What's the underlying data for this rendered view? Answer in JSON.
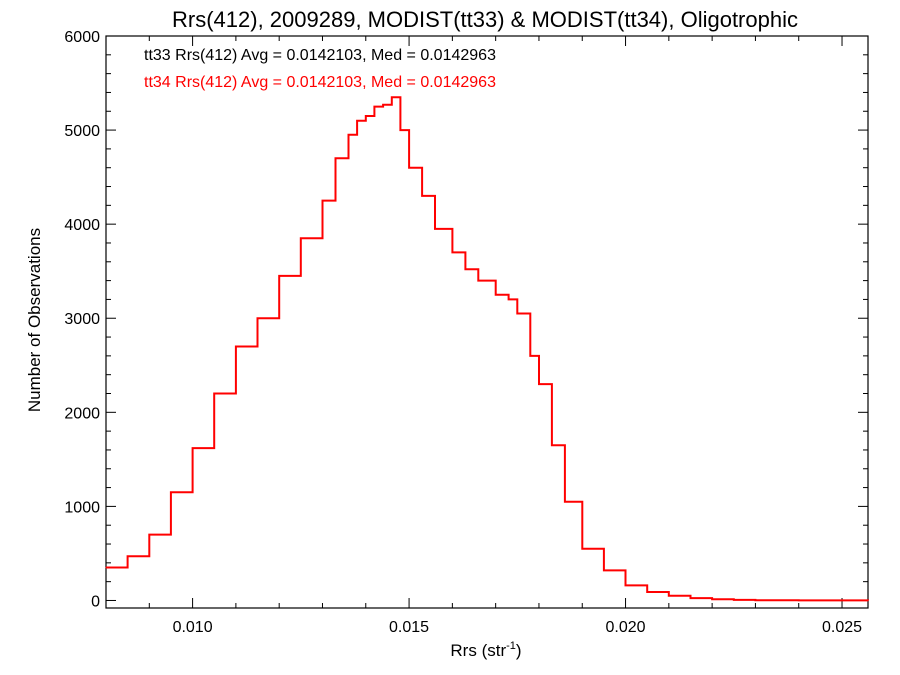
{
  "chart_data": {
    "type": "line",
    "step": true,
    "title": "Rrs(412), 2009289, MODIST(tt33) & MODIST(tt34), Oligotrophic",
    "xlabel": "Rrs (str",
    "xlabel_sup": "-1",
    "xlabel_end": ")",
    "ylabel": "Number of Observations",
    "xlim": [
      0.008,
      0.0256
    ],
    "ylim": [
      -80,
      6000
    ],
    "xticks": [
      0.01,
      0.015,
      0.02,
      0.025
    ],
    "xtick_labels": [
      "0.010",
      "0.015",
      "0.020",
      "0.025"
    ],
    "yticks": [
      0,
      1000,
      2000,
      3000,
      4000,
      5000,
      6000
    ],
    "ytick_labels": [
      "0",
      "1000",
      "2000",
      "3000",
      "4000",
      "5000",
      "6000"
    ],
    "grid": false,
    "annotations": [
      {
        "text": "tt33 Rrs(412) Avg = 0.0142103, Med = 0.0142963",
        "color": "#000000"
      },
      {
        "text": "tt34 Rrs(412) Avg = 0.0142103, Med = 0.0142963",
        "color": "#ff0000"
      }
    ],
    "series": [
      {
        "color": "#ff0000",
        "x": [
          0.008,
          0.0085,
          0.009,
          0.0095,
          0.01,
          0.0105,
          0.011,
          0.0115,
          0.012,
          0.0125,
          0.013,
          0.0133,
          0.0136,
          0.0138,
          0.014,
          0.0142,
          0.0144,
          0.0146,
          0.0148,
          0.015,
          0.0153,
          0.0156,
          0.016,
          0.0163,
          0.0166,
          0.017,
          0.0173,
          0.0175,
          0.0178,
          0.018,
          0.0183,
          0.0186,
          0.019,
          0.0195,
          0.02,
          0.0205,
          0.021,
          0.0215,
          0.022,
          0.0225,
          0.023,
          0.024,
          0.0256
        ],
        "y": [
          350,
          470,
          700,
          1150,
          1620,
          2200,
          2700,
          3000,
          3450,
          3850,
          4250,
          4700,
          4950,
          5100,
          5150,
          5250,
          5270,
          5350,
          5000,
          4600,
          4300,
          3950,
          3700,
          3520,
          3400,
          3250,
          3200,
          3050,
          2600,
          2300,
          1650,
          1050,
          550,
          320,
          160,
          90,
          50,
          25,
          12,
          6,
          3,
          1,
          0
        ]
      }
    ]
  }
}
